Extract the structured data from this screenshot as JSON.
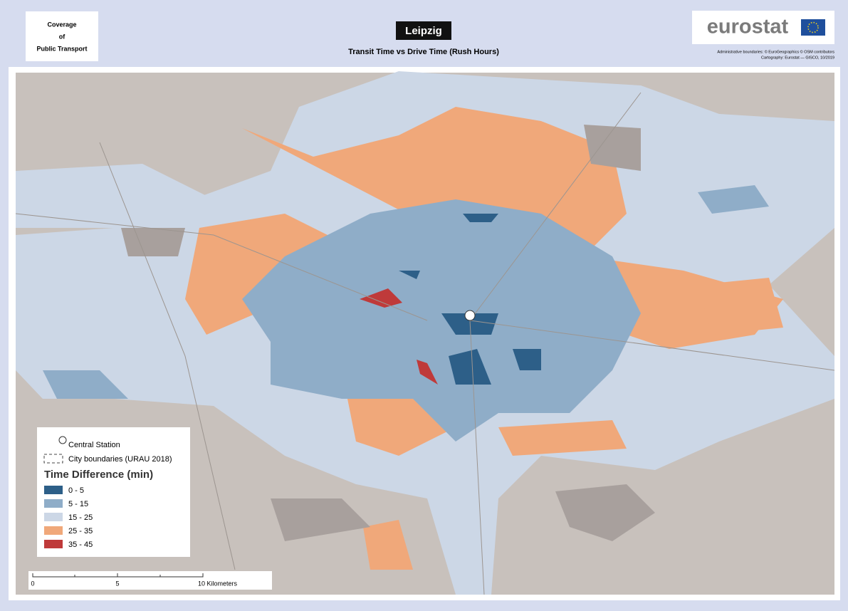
{
  "header": {
    "box_title": [
      "Coverage",
      "of",
      "Public Transport"
    ],
    "city": "Leipzig",
    "subtitle": "Transit Time vs Drive Time (Rush Hours)",
    "logo": "eurostat",
    "credits": [
      "Administrative boundaries: © EuroGeographics © OSM contributors",
      "Cartography: Eurostat — GISCO, 10/2019"
    ]
  },
  "legend": {
    "station": "Central Station",
    "boundaries": "City boundaries (URAU 2018)",
    "title": "Time Difference (min)",
    "classes": [
      {
        "label": "0 - 5",
        "color": "#2d5f88"
      },
      {
        "label": "5 - 15",
        "color": "#8fadc8"
      },
      {
        "label": "15 - 25",
        "color": "#ccd7e6"
      },
      {
        "label": "25 - 35",
        "color": "#f0a87a"
      },
      {
        "label": "35 - 45",
        "color": "#bf3a3a"
      }
    ]
  },
  "scale_bar": {
    "labels": [
      "0",
      "5",
      "10 Kilometers"
    ]
  }
}
